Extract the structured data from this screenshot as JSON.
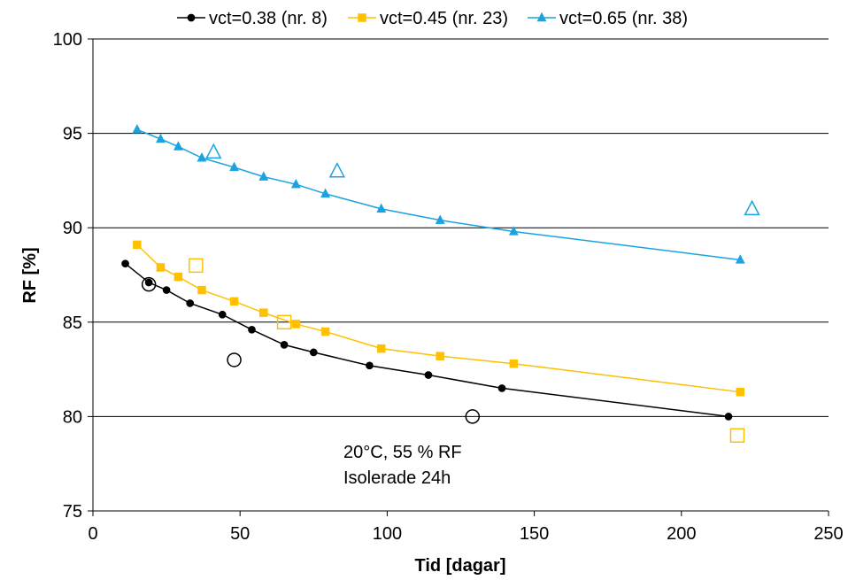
{
  "chart_data": {
    "type": "scatter",
    "title": "",
    "xlabel": "Tid [dagar]",
    "ylabel": "RF [%]",
    "xlim": [
      0,
      250
    ],
    "ylim": [
      75,
      100
    ],
    "xticks": [
      0,
      50,
      100,
      150,
      200,
      250
    ],
    "yticks": [
      75,
      80,
      85,
      90,
      95,
      100
    ],
    "grid": "horizontal",
    "legend_position": "top",
    "annotation_lines": [
      "20°C, 55 % RF",
      "Isolerade 24h"
    ],
    "series": [
      {
        "name": "vct=0.38 (nr. 8)",
        "color": "#000000",
        "marker": "circle",
        "x": [
          11,
          19,
          25,
          33,
          44,
          54,
          65,
          75,
          94,
          114,
          139,
          216
        ],
        "y": [
          88.1,
          87.1,
          86.7,
          86.0,
          85.4,
          84.6,
          83.8,
          83.4,
          82.7,
          82.2,
          81.5,
          80.0
        ]
      },
      {
        "name": "vct=0.45 (nr. 23)",
        "color": "#FFC000",
        "marker": "square",
        "x": [
          15,
          23,
          29,
          37,
          48,
          58,
          69,
          79,
          98,
          118,
          143,
          220
        ],
        "y": [
          89.1,
          87.9,
          87.4,
          86.7,
          86.1,
          85.5,
          84.9,
          84.5,
          83.6,
          83.2,
          82.8,
          81.3
        ]
      },
      {
        "name": "vct=0.65 (nr. 38)",
        "color": "#1AA3E0",
        "marker": "triangle",
        "x": [
          15,
          23,
          29,
          37,
          48,
          58,
          69,
          79,
          98,
          118,
          143,
          220
        ],
        "y": [
          95.2,
          94.7,
          94.3,
          93.7,
          93.2,
          92.7,
          92.3,
          91.8,
          91.0,
          90.4,
          89.8,
          88.3
        ]
      }
    ],
    "open_markers": [
      {
        "series": "vct=0.38 (nr. 8)",
        "marker": "circle",
        "color": "#000000",
        "points": [
          [
            19,
            87.0
          ],
          [
            48,
            83.0
          ],
          [
            129,
            80.0
          ]
        ]
      },
      {
        "series": "vct=0.45 (nr. 23)",
        "marker": "square",
        "color": "#FFC000",
        "points": [
          [
            35,
            88.0
          ],
          [
            65,
            85.0
          ],
          [
            219,
            79.0
          ]
        ]
      },
      {
        "series": "vct=0.65 (nr. 38)",
        "marker": "triangle",
        "color": "#1AA3E0",
        "points": [
          [
            41,
            94.0
          ],
          [
            83,
            93.0
          ],
          [
            224,
            91.0
          ]
        ]
      }
    ]
  }
}
